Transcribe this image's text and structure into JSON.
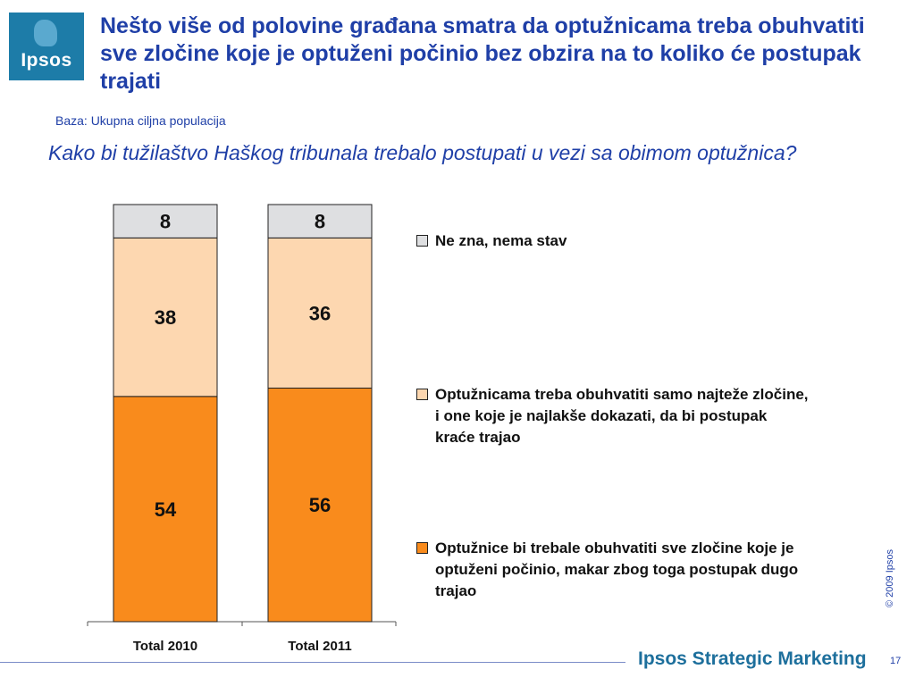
{
  "logo": {
    "text": "Ipsos"
  },
  "title": "Nešto više od polovine građana smatra da optužnicama treba obuhvatiti sve zločine koje je optuženi počinio bez obzira na to koliko će postupak trajati",
  "base": "Baza: Ukupna ciljna populacija",
  "question": "Kako bi tužilaštvo Haškog tribunala trebalo postupati u vezi sa obimom optužnica?",
  "chart_data": {
    "type": "bar",
    "stacked": true,
    "categories": [
      "Total 2010",
      "Total 2011"
    ],
    "series": [
      {
        "name": "Optužnice bi trebale obuhvatiti sve zločine koje je optuženi počinio, makar zbog toga postupak dugo trajao",
        "color": "#f98b1c",
        "values": [
          54,
          56
        ],
        "labels": [
          "54",
          "56"
        ]
      },
      {
        "name": "Optužnicama treba obuhvatiti samo najteže zločine, i one koje je najlakše dokazati, da bi postupak kraće trajao",
        "color": "#fdd7b0",
        "values": [
          38,
          36
        ],
        "labels": [
          "38",
          "36"
        ]
      },
      {
        "name": "Ne zna, nema stav",
        "color": "#dedfe1",
        "values": [
          8,
          8
        ],
        "labels": [
          "8",
          "8"
        ]
      }
    ],
    "ylim": [
      0,
      100
    ],
    "legend": "right"
  },
  "copyright": "© 2009 Ipsos",
  "footer": {
    "brand": "Ipsos Strategic Marketing"
  },
  "page_number": "17"
}
